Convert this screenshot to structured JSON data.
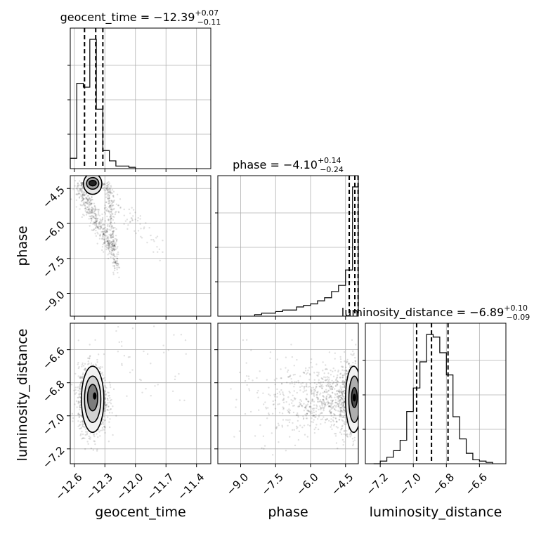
{
  "chart_data": {
    "type": "corner",
    "parameters": [
      {
        "name": "geocent_time",
        "axis_label": "geocent_time",
        "title": {
          "main": "geocent_time = −12.39",
          "sup": "+0.07",
          "sub": "−0.11"
        },
        "range": [
          -12.64,
          -11.26
        ],
        "ticks": [
          -12.6,
          -12.3,
          -12.0,
          -11.7,
          -11.4
        ],
        "tick_labels": [
          "−12.6",
          "−12.3",
          "−12.0",
          "−11.7",
          "−11.4"
        ],
        "quantiles": [
          -12.5,
          -12.39,
          -12.32
        ],
        "hist_bins": [
          -12.64,
          -12.576,
          -12.512,
          -12.448,
          -12.384,
          -12.32,
          -12.256,
          -12.192,
          -12.128,
          -12.064,
          -12.0
        ],
        "hist_values": [
          0.08,
          0.66,
          0.63,
          1.0,
          0.46,
          0.14,
          0.06,
          0.02,
          0.02,
          0.01
        ]
      },
      {
        "name": "phase",
        "axis_label": "phase",
        "title": {
          "main": "phase = −4.10",
          "sup": "+0.14",
          "sub": "−0.24"
        },
        "range": [
          -9.98,
          -3.95
        ],
        "ticks": [
          -9.0,
          -7.5,
          -6.0,
          -4.5
        ],
        "tick_labels": [
          "−9.0",
          "−7.5",
          "−6.0",
          "−4.5"
        ],
        "quantiles": [
          -4.34,
          -4.1,
          -3.96
        ],
        "hist_bins": [
          -8.4,
          -8.1,
          -7.8,
          -7.5,
          -7.2,
          -6.9,
          -6.6,
          -6.3,
          -6.0,
          -5.7,
          -5.4,
          -5.1,
          -4.8,
          -4.5,
          -4.2,
          -3.95
        ],
        "hist_values": [
          0.005,
          0.01,
          0.01,
          0.015,
          0.02,
          0.02,
          0.03,
          0.035,
          0.04,
          0.05,
          0.06,
          0.08,
          0.1,
          0.15,
          0.42
        ]
      },
      {
        "name": "luminosity_distance",
        "axis_label": "luminosity_distance",
        "title": {
          "main": "luminosity_distance = −6.89",
          "sup": "+0.10",
          "sub": "−0.09"
        },
        "range": [
          -7.29,
          -6.44
        ],
        "ticks": [
          -7.2,
          -7.0,
          -6.8,
          -6.6
        ],
        "tick_labels": [
          "−7.2",
          "−7.0",
          "−6.8",
          "−6.6"
        ],
        "y_ticks": [
          -7.2,
          -7.0,
          -6.8,
          -6.6
        ],
        "y_tick_labels": [
          "−7.2",
          "−7.0",
          "−6.8",
          "−6.6"
        ],
        "quantiles": [
          -6.98,
          -6.89,
          -6.79
        ],
        "hist_bins": [
          -7.24,
          -7.2,
          -7.16,
          -7.12,
          -7.08,
          -7.04,
          -7.0,
          -6.96,
          -6.92,
          -6.88,
          -6.84,
          -6.8,
          -6.76,
          -6.72,
          -6.68,
          -6.64,
          -6.6,
          -6.56,
          -6.52
        ],
        "hist_values": [
          0.0,
          0.02,
          0.05,
          0.1,
          0.18,
          0.4,
          0.58,
          0.78,
          0.99,
          0.97,
          0.85,
          0.68,
          0.36,
          0.19,
          0.08,
          0.03,
          0.02,
          0.01
        ]
      }
    ],
    "phase_y_ticks": [
      -9.0,
      -7.5,
      -6.0,
      -4.5
    ],
    "phase_y_tick_labels": [
      "−9.0",
      "−7.5",
      "−6.0",
      "−4.5"
    ],
    "grid": true,
    "colors": {
      "scatter": "#000000",
      "line": "#000000",
      "grid": "#b0b0b0"
    },
    "scatter_density": {
      "geocent_time_vs_phase": {
        "cluster_center": [
          -12.42,
          -4.35
        ],
        "tail": [
          [
            -12.55,
            -4.6
          ],
          [
            -12.3,
            -5.6
          ],
          [
            -12.25,
            -7.0
          ],
          [
            -12.2,
            -8.9
          ]
        ]
      },
      "geocent_time_vs_luminosity_distance": {
        "cluster_center": [
          -12.42,
          -6.9
        ]
      },
      "phase_vs_luminosity_distance": {
        "cluster_center": [
          -4.25,
          -6.9
        ]
      }
    }
  }
}
